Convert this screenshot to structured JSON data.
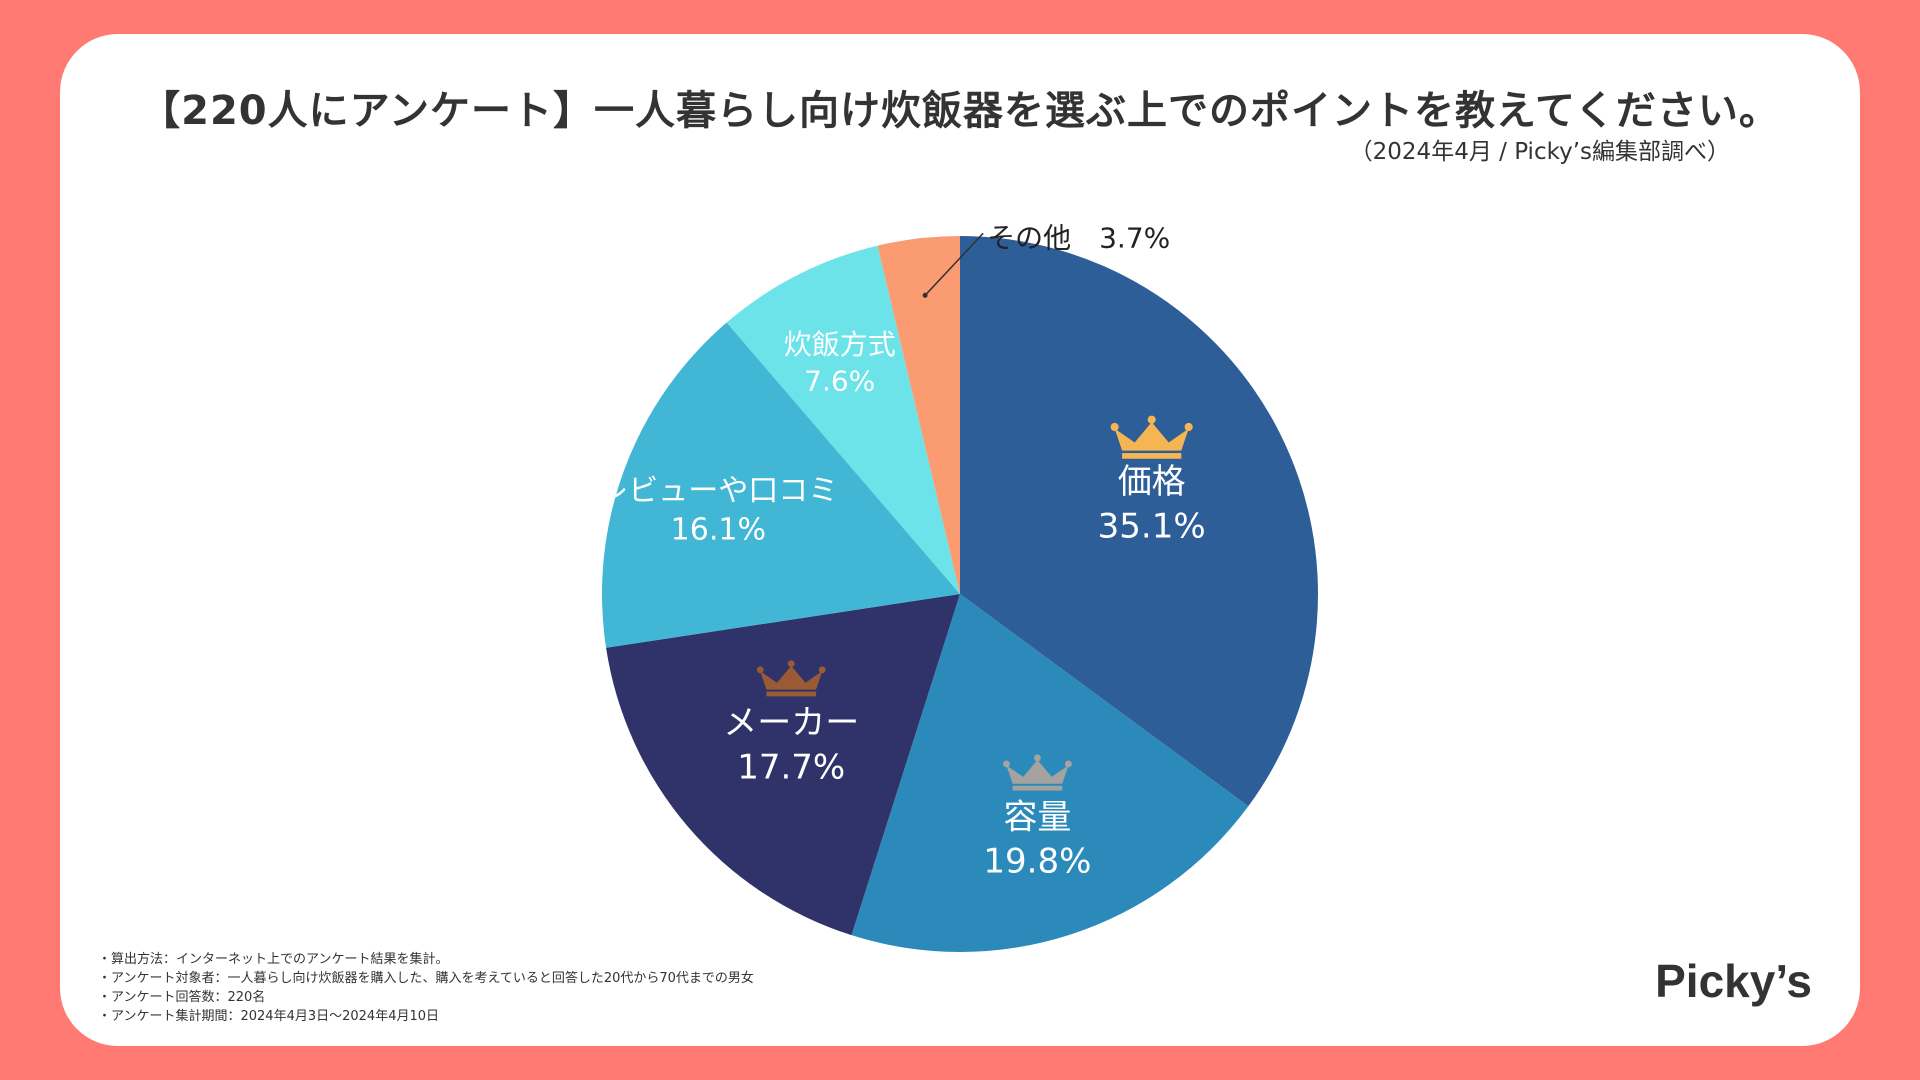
{
  "title": "【220人にアンケート】一人暮らし向け炊飯器を選ぶ上でのポイントを教えてください。",
  "source": "（2024年4月 / Picky’s編集部調べ）",
  "brand": "Picky’s",
  "notes": [
    "・算出方法：インターネット上でのアンケート結果を集計。",
    "・アンケート対象者：一人暮らし向け炊飯器を購入した、購入を考えていると回答した20代から70代までの男女",
    "・アンケート回答数：220名",
    "・アンケート集計期間：2024年4月3日〜2024年4月10日"
  ],
  "colors": {
    "background": "#FF7A73",
    "gold": "#F5B553",
    "silver": "#A6A2A0",
    "bronze": "#9A5A34"
  },
  "chart_data": {
    "type": "pie",
    "title": "【220人にアンケート】一人暮らし向け炊飯器を選ぶ上でのポイントを教えてください。",
    "start": "12 o'clock, clockwise",
    "slices": [
      {
        "label": "価格",
        "value": 35.1,
        "display": "35.1%",
        "color": "#2E5E97",
        "rank": "gold"
      },
      {
        "label": "容量",
        "value": 19.8,
        "display": "19.8%",
        "color": "#2C8ABA",
        "rank": "silver"
      },
      {
        "label": "メーカー",
        "value": 17.7,
        "display": "17.7%",
        "color": "#2F3369",
        "rank": "bronze"
      },
      {
        "label": "レビューや口コミ",
        "value": 16.1,
        "display": "16.1%",
        "color": "#41B6D5",
        "rank": null
      },
      {
        "label": "炊飯方式",
        "value": 7.6,
        "display": "7.6%",
        "color": "#6BE3E8",
        "rank": null
      },
      {
        "label": "その他",
        "value": 3.7,
        "display": "3.7%",
        "color": "#FB9B72",
        "rank": null,
        "callout": "その他　3.7%"
      }
    ]
  }
}
